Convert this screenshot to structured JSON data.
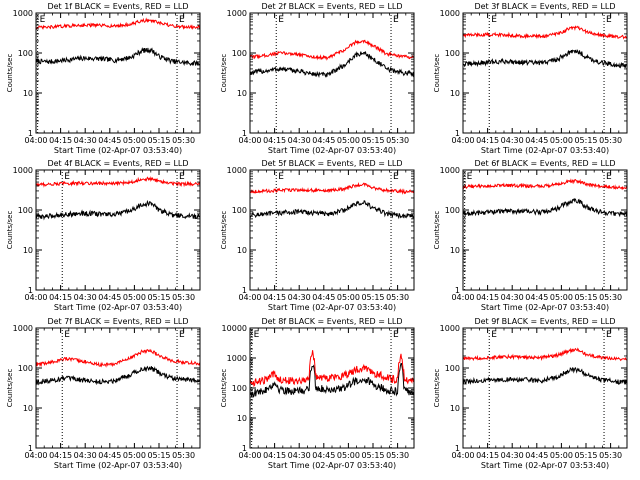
{
  "figure": {
    "ylabel": "Counts/sec",
    "xlabel": "Start Time (02-Apr-07 03:53:40)",
    "colors": {
      "events": "#000000",
      "lld": "#ff0000"
    },
    "x_ticks": [
      "04:00",
      "04:15",
      "04:30",
      "04:45",
      "05:00",
      "05:15",
      "05:30"
    ],
    "y_ticks": [
      "1",
      "10",
      "100",
      "1000",
      "10000"
    ],
    "marker_text": {
      "start": "E",
      "end": "E"
    }
  },
  "chart_data": [
    {
      "type": "line",
      "title": "Det 1f BLACK = Events, RED = LLD",
      "xlabel": "Start Time (02-Apr-07 03:53:40)",
      "ylabel": "Counts/sec",
      "yscale": "log",
      "ylim": [
        1,
        1000
      ],
      "xlim_minutes": [
        -3,
        97
      ],
      "x_ticks": [
        "04:00",
        "04:15",
        "04:30",
        "04:45",
        "05:00",
        "05:15",
        "05:30"
      ],
      "markers_minutes": [
        -2,
        83
      ],
      "markers": [
        "E",
        "E"
      ],
      "series": [
        {
          "name": "Events",
          "color": "#000000",
          "t": [
            -3,
            5,
            15,
            25,
            35,
            45,
            55,
            62,
            67,
            72,
            80,
            90,
            97
          ],
          "y": [
            62,
            60,
            66,
            74,
            72,
            66,
            78,
            115,
            120,
            82,
            62,
            56,
            55
          ]
        },
        {
          "name": "LLD",
          "color": "#ff0000",
          "t": [
            -3,
            5,
            15,
            25,
            35,
            45,
            55,
            62,
            67,
            72,
            80,
            90,
            97
          ],
          "y": [
            430,
            440,
            470,
            500,
            490,
            470,
            520,
            640,
            660,
            560,
            470,
            450,
            440
          ]
        }
      ]
    },
    {
      "type": "line",
      "title": "Det 2f BLACK = Events, RED = LLD",
      "xlabel": "Start Time (02-Apr-07 03:53:40)",
      "ylabel": "Counts/sec",
      "yscale": "log",
      "ylim": [
        1,
        1000
      ],
      "xlim_minutes": [
        -3,
        97
      ],
      "x_ticks": [
        "04:00",
        "04:15",
        "04:30",
        "04:45",
        "05:00",
        "05:15",
        "05:30"
      ],
      "markers_minutes": [
        13,
        83
      ],
      "markers": [
        "E",
        "E"
      ],
      "series": [
        {
          "name": "Events",
          "color": "#000000",
          "t": [
            -3,
            5,
            15,
            25,
            35,
            45,
            55,
            62,
            67,
            72,
            80,
            90,
            97
          ],
          "y": [
            32,
            35,
            40,
            36,
            30,
            28,
            50,
            90,
            100,
            70,
            40,
            32,
            30
          ]
        },
        {
          "name": "LLD",
          "color": "#ff0000",
          "t": [
            -3,
            5,
            15,
            25,
            35,
            45,
            55,
            62,
            67,
            72,
            80,
            90,
            97
          ],
          "y": [
            80,
            85,
            100,
            95,
            80,
            75,
            120,
            190,
            200,
            150,
            95,
            80,
            78
          ]
        }
      ]
    },
    {
      "type": "line",
      "title": "Det 3f BLACK = Events, RED = LLD",
      "xlabel": "Start Time (02-Apr-07 03:53:40)",
      "ylabel": "Counts/sec",
      "yscale": "log",
      "ylim": [
        1,
        1000
      ],
      "xlim_minutes": [
        -3,
        97
      ],
      "x_ticks": [
        "04:00",
        "04:15",
        "04:30",
        "04:45",
        "05:00",
        "05:15",
        "05:30"
      ],
      "markers_minutes": [
        13,
        83
      ],
      "markers": [
        "E",
        "E"
      ],
      "series": [
        {
          "name": "Events",
          "color": "#000000",
          "t": [
            -3,
            5,
            15,
            25,
            35,
            45,
            55,
            62,
            67,
            72,
            80,
            90,
            97
          ],
          "y": [
            52,
            55,
            60,
            62,
            58,
            56,
            70,
            105,
            110,
            80,
            58,
            50,
            48
          ]
        },
        {
          "name": "LLD",
          "color": "#ff0000",
          "t": [
            -3,
            5,
            15,
            25,
            35,
            45,
            55,
            62,
            67,
            72,
            80,
            90,
            97
          ],
          "y": [
            280,
            285,
            290,
            280,
            265,
            260,
            300,
            410,
            430,
            340,
            280,
            255,
            250
          ]
        }
      ]
    },
    {
      "type": "line",
      "title": "Det 4f BLACK = Events, RED = LLD",
      "xlabel": "Start Time (02-Apr-07 03:53:40)",
      "ylabel": "Counts/sec",
      "yscale": "log",
      "ylim": [
        1,
        1000
      ],
      "xlim_minutes": [
        -3,
        97
      ],
      "x_ticks": [
        "04:00",
        "04:15",
        "04:30",
        "04:45",
        "05:00",
        "05:15",
        "05:30"
      ],
      "markers_minutes": [
        13,
        83
      ],
      "markers": [
        "E",
        "E"
      ],
      "series": [
        {
          "name": "Events",
          "color": "#000000",
          "t": [
            -3,
            5,
            15,
            25,
            35,
            45,
            55,
            62,
            67,
            72,
            80,
            90,
            97
          ],
          "y": [
            68,
            70,
            78,
            82,
            80,
            76,
            95,
            140,
            145,
            100,
            75,
            70,
            68
          ]
        },
        {
          "name": "LLD",
          "color": "#ff0000",
          "t": [
            -3,
            5,
            15,
            25,
            35,
            45,
            55,
            62,
            67,
            72,
            80,
            90,
            97
          ],
          "y": [
            430,
            440,
            460,
            470,
            465,
            455,
            500,
            590,
            600,
            520,
            460,
            445,
            440
          ]
        }
      ]
    },
    {
      "type": "line",
      "title": "Det 5f BLACK = Events, RED = LLD",
      "xlabel": "Start Time (02-Apr-07 03:53:40)",
      "ylabel": "Counts/sec",
      "yscale": "log",
      "ylim": [
        1,
        1000
      ],
      "xlim_minutes": [
        -3,
        97
      ],
      "x_ticks": [
        "04:00",
        "04:15",
        "04:30",
        "04:45",
        "05:00",
        "05:15",
        "05:30"
      ],
      "markers_minutes": [
        13,
        83
      ],
      "markers": [
        "E",
        "E"
      ],
      "series": [
        {
          "name": "Events",
          "color": "#000000",
          "t": [
            -3,
            5,
            15,
            25,
            35,
            45,
            55,
            62,
            67,
            72,
            80,
            90,
            97
          ],
          "y": [
            75,
            78,
            85,
            90,
            85,
            80,
            100,
            145,
            150,
            110,
            80,
            72,
            70
          ]
        },
        {
          "name": "LLD",
          "color": "#ff0000",
          "t": [
            -3,
            5,
            15,
            25,
            35,
            45,
            55,
            62,
            67,
            72,
            80,
            90,
            97
          ],
          "y": [
            290,
            295,
            310,
            320,
            310,
            300,
            340,
            420,
            430,
            360,
            310,
            290,
            285
          ]
        }
      ]
    },
    {
      "type": "line",
      "title": "Det 6f BLACK = Events, RED = LLD",
      "xlabel": "Start Time (02-Apr-07 03:53:40)",
      "ylabel": "Counts/sec",
      "yscale": "log",
      "ylim": [
        1,
        1000
      ],
      "xlim_minutes": [
        -3,
        97
      ],
      "x_ticks": [
        "04:00",
        "04:15",
        "04:30",
        "04:45",
        "05:00",
        "05:15",
        "05:30"
      ],
      "markers_minutes": [
        -2,
        83
      ],
      "markers": [
        "E",
        "E"
      ],
      "series": [
        {
          "name": "Events",
          "color": "#000000",
          "t": [
            -3,
            5,
            15,
            25,
            35,
            45,
            55,
            62,
            67,
            72,
            80,
            90,
            97
          ],
          "y": [
            80,
            84,
            90,
            95,
            92,
            88,
            110,
            160,
            170,
            120,
            90,
            80,
            78
          ]
        },
        {
          "name": "LLD",
          "color": "#ff0000",
          "t": [
            -3,
            5,
            15,
            25,
            35,
            45,
            55,
            62,
            67,
            72,
            80,
            90,
            97
          ],
          "y": [
            380,
            390,
            400,
            410,
            400,
            395,
            430,
            520,
            530,
            450,
            390,
            370,
            360
          ]
        }
      ]
    },
    {
      "type": "line",
      "title": "Det 7f BLACK = Events, RED = LLD",
      "xlabel": "Start Time (02-Apr-07 03:53:40)",
      "ylabel": "Counts/sec",
      "yscale": "log",
      "ylim": [
        1,
        1000
      ],
      "xlim_minutes": [
        -3,
        97
      ],
      "x_ticks": [
        "04:00",
        "04:15",
        "04:30",
        "04:45",
        "05:00",
        "05:15",
        "05:30"
      ],
      "markers_minutes": [
        13,
        83
      ],
      "markers": [
        "E",
        "E"
      ],
      "series": [
        {
          "name": "Events",
          "color": "#000000",
          "t": [
            -3,
            5,
            15,
            25,
            35,
            45,
            55,
            62,
            67,
            72,
            80,
            90,
            97
          ],
          "y": [
            45,
            48,
            55,
            50,
            45,
            48,
            70,
            95,
            100,
            75,
            55,
            50,
            45
          ]
        },
        {
          "name": "LLD",
          "color": "#ff0000",
          "t": [
            -3,
            5,
            15,
            25,
            35,
            45,
            55,
            62,
            67,
            72,
            80,
            90,
            97
          ],
          "y": [
            120,
            135,
            170,
            150,
            120,
            125,
            180,
            260,
            275,
            200,
            150,
            135,
            130
          ]
        }
      ]
    },
    {
      "type": "line",
      "title": "Det 8f BLACK = Events, RED = LLD",
      "xlabel": "Start Time (02-Apr-07 03:53:40)",
      "ylabel": "Counts/sec",
      "yscale": "log",
      "ylim": [
        1,
        10000
      ],
      "xlim_minutes": [
        -3,
        97
      ],
      "x_ticks": [
        "04:00",
        "04:15",
        "04:30",
        "04:45",
        "05:00",
        "05:15",
        "05:30"
      ],
      "markers_minutes": [
        -2,
        83
      ],
      "markers": [
        "E",
        "E"
      ],
      "series": [
        {
          "name": "Events",
          "color": "#000000",
          "t": [
            -3,
            5,
            12,
            15,
            25,
            33,
            35,
            37,
            45,
            55,
            62,
            67,
            72,
            80,
            87,
            89,
            91,
            97
          ],
          "y": [
            65,
            75,
            140,
            90,
            75,
            90,
            650,
            100,
            90,
            100,
            180,
            200,
            130,
            90,
            75,
            600,
            80,
            70
          ]
        },
        {
          "name": "LLD",
          "color": "#ff0000",
          "t": [
            -3,
            5,
            12,
            15,
            25,
            33,
            35,
            37,
            45,
            55,
            62,
            67,
            72,
            80,
            87,
            89,
            91,
            97
          ],
          "y": [
            150,
            170,
            280,
            200,
            170,
            200,
            1700,
            230,
            220,
            260,
            420,
            460,
            330,
            220,
            180,
            1300,
            190,
            160
          ]
        }
      ]
    },
    {
      "type": "line",
      "title": "Det 9f BLACK = Events, RED = LLD",
      "xlabel": "Start Time (02-Apr-07 03:53:40)",
      "ylabel": "Counts/sec",
      "yscale": "log",
      "ylim": [
        1,
        1000
      ],
      "xlim_minutes": [
        -3,
        97
      ],
      "x_ticks": [
        "04:00",
        "04:15",
        "04:30",
        "04:45",
        "05:00",
        "05:15",
        "05:30"
      ],
      "markers_minutes": [
        13,
        83
      ],
      "markers": [
        "E",
        "E"
      ],
      "series": [
        {
          "name": "Events",
          "color": "#000000",
          "t": [
            -3,
            5,
            15,
            25,
            35,
            45,
            55,
            62,
            67,
            72,
            80,
            90,
            97
          ],
          "y": [
            45,
            47,
            50,
            52,
            50,
            48,
            60,
            88,
            92,
            68,
            50,
            45,
            44
          ]
        },
        {
          "name": "LLD",
          "color": "#ff0000",
          "t": [
            -3,
            5,
            15,
            25,
            35,
            45,
            55,
            62,
            67,
            72,
            80,
            90,
            97
          ],
          "y": [
            170,
            175,
            185,
            190,
            185,
            180,
            210,
            270,
            280,
            220,
            185,
            170,
            165
          ]
        }
      ]
    }
  ]
}
